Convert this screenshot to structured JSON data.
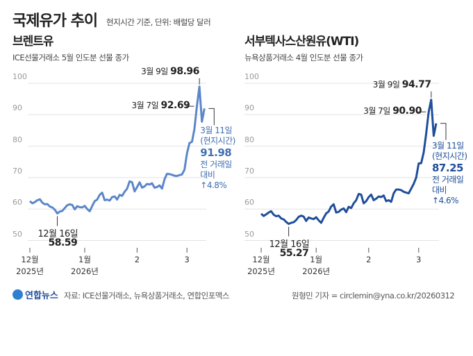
{
  "header": {
    "title": "국제유가 추이",
    "subtitle": "현지시간 기준, 단위: 배럴당 달러"
  },
  "footer": {
    "logo": "연합뉴스",
    "source": "자료: ICE선물거래소, 뉴욕상품거래소, 연합인포맥스",
    "credit": "원형민 기자 = circlemin@yna.co.kr/20260312"
  },
  "chart_data": [
    {
      "type": "line",
      "title": "브렌트유",
      "subtitle": "ICE선물거래소 5월 인도분 선물 종가",
      "color": "#5b86c9",
      "text_color": "#3f6fb3",
      "ylim": [
        50,
        100
      ],
      "yticks": [
        "100",
        "90",
        "80",
        "70",
        "60",
        "50"
      ],
      "grid": true,
      "xticks": [
        {
          "date": "2025-12-01",
          "label": "12월",
          "sub": "2025년"
        },
        {
          "date": "2026-01-02",
          "label": "1월",
          "sub": "2026년"
        },
        {
          "date": "2026-02-02",
          "label": "2",
          "sub": ""
        },
        {
          "date": "2026-03-02",
          "label": "3",
          "sub": ""
        }
      ],
      "x": [
        "2025-12-01",
        "2025-12-02",
        "2025-12-03",
        "2025-12-04",
        "2025-12-05",
        "2025-12-08",
        "2025-12-09",
        "2025-12-10",
        "2025-12-11",
        "2025-12-12",
        "2025-12-15",
        "2025-12-16",
        "2025-12-17",
        "2025-12-18",
        "2025-12-19",
        "2025-12-22",
        "2025-12-23",
        "2025-12-24",
        "2025-12-26",
        "2025-12-29",
        "2025-12-30",
        "2025-12-31",
        "2026-01-02",
        "2026-01-05",
        "2026-01-06",
        "2026-01-07",
        "2026-01-08",
        "2026-01-09",
        "2026-01-12",
        "2026-01-13",
        "2026-01-14",
        "2026-01-15",
        "2026-01-16",
        "2026-01-19",
        "2026-01-20",
        "2026-01-21",
        "2026-01-22",
        "2026-01-23",
        "2026-01-26",
        "2026-01-27",
        "2026-01-28",
        "2026-01-29",
        "2026-01-30",
        "2026-02-02",
        "2026-02-03",
        "2026-02-04",
        "2026-02-05",
        "2026-02-06",
        "2026-02-09",
        "2026-02-10",
        "2026-02-11",
        "2026-02-12",
        "2026-02-13",
        "2026-02-16",
        "2026-02-17",
        "2026-02-18",
        "2026-02-19",
        "2026-02-20",
        "2026-02-23",
        "2026-02-24",
        "2026-02-25",
        "2026-02-26",
        "2026-02-27",
        "2026-03-02",
        "2026-03-03",
        "2026-03-04",
        "2026-03-05",
        "2026-03-06",
        "2026-03-09",
        "2026-03-10",
        "2026-03-11"
      ],
      "values": [
        62.5,
        61.8,
        62.2,
        62.8,
        63.1,
        62.0,
        61.5,
        61.6,
        60.8,
        60.5,
        59.8,
        58.59,
        59.2,
        59.4,
        60.3,
        61.2,
        61.5,
        61.3,
        59.9,
        60.9,
        60.6,
        60.5,
        61.0,
        60.0,
        59.3,
        61.0,
        62.5,
        63.0,
        64.5,
        65.2,
        62.8,
        63.0,
        62.7,
        63.8,
        64.0,
        63.0,
        64.5,
        64.2,
        65.5,
        66.5,
        68.8,
        68.5,
        65.6,
        67.0,
        68.5,
        66.8,
        67.2,
        68.0,
        67.8,
        68.2,
        66.8,
        67.0,
        67.5,
        66.5,
        69.5,
        71.2,
        71.1,
        70.9,
        70.6,
        70.5,
        70.8,
        71.0,
        72.5,
        77.7,
        81.0,
        81.4,
        85.4,
        92.69,
        98.96,
        87.8,
        91.98
      ],
      "annotations": {
        "low": {
          "date_label": "12월 16일",
          "value": "58.59"
        },
        "peak": {
          "date_label": "3월 9일",
          "value": "98.96"
        },
        "mar7": {
          "date_label": "3월 7일",
          "value": "92.69"
        },
        "last": {
          "date_label": "3월 11일",
          "note": "(현지시간)",
          "value": "91.98",
          "change_label1": "전 거래일",
          "change_label2": "대비",
          "change": "↑4.8%"
        }
      }
    },
    {
      "type": "line",
      "title": "서부텍사스산원유(WTI)",
      "subtitle": "뉴욕상품거래소 4월 인도분 선물 종가",
      "color": "#1f4e9a",
      "text_color": "#1f4e9a",
      "ylim": [
        50,
        100
      ],
      "yticks": [
        "100",
        "90",
        "80",
        "70",
        "60",
        "50"
      ],
      "grid": true,
      "xticks": [
        {
          "date": "2025-12-01",
          "label": "12월",
          "sub": "2025년"
        },
        {
          "date": "2026-01-02",
          "label": "1월",
          "sub": "2026년"
        },
        {
          "date": "2026-02-02",
          "label": "2",
          "sub": ""
        },
        {
          "date": "2026-03-02",
          "label": "3",
          "sub": ""
        }
      ],
      "values": [
        58.5,
        57.8,
        58.3,
        58.9,
        59.3,
        58.2,
        57.7,
        57.9,
        57.0,
        56.7,
        55.9,
        55.27,
        55.6,
        55.8,
        56.5,
        57.5,
        57.9,
        57.6,
        56.2,
        57.3,
        57.0,
        56.8,
        57.4,
        56.4,
        55.6,
        57.2,
        58.6,
        59.2,
        60.8,
        61.5,
        58.9,
        59.1,
        59.8,
        60.2,
        59.0,
        60.7,
        60.3,
        61.8,
        62.8,
        64.8,
        64.6,
        61.8,
        62.5,
        63.8,
        64.6,
        62.8,
        63.3,
        64.0,
        63.8,
        64.3,
        62.5,
        62.8,
        62.3,
        65.0,
        66.2,
        66.2,
        66.0,
        65.5,
        65.2,
        65.0,
        66.5,
        68.0,
        70.0,
        74.5,
        74.6,
        78.0,
        84.0,
        90.9,
        94.77,
        83.3,
        87.25
      ],
      "annotations": {
        "low": {
          "date_label": "12월 16일",
          "value": "55.27"
        },
        "peak": {
          "date_label": "3월 9일",
          "value": "94.77"
        },
        "mar7": {
          "date_label": "3월 7일",
          "value": "90.90"
        },
        "last": {
          "date_label": "3월 11일",
          "note": "(현지시간)",
          "value": "87.25",
          "change_label1": "전 거래일",
          "change_label2": "대비",
          "change": "↑4.6%"
        }
      }
    }
  ]
}
